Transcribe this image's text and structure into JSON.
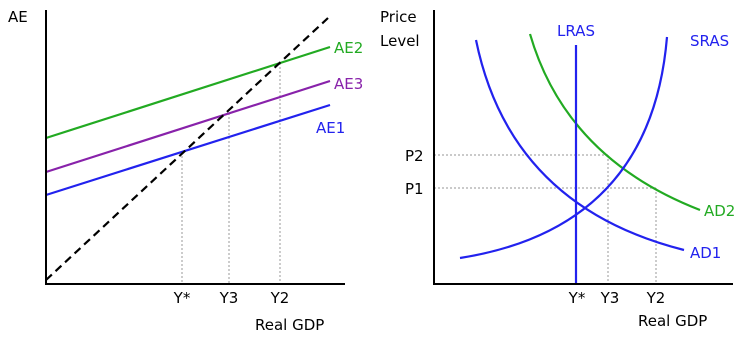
{
  "left_panel": {
    "y_axis_label": "AE",
    "x_axis_label": "Real GDP",
    "lines": {
      "ae1": {
        "label": "AE1",
        "color": "#2222ee"
      },
      "ae2": {
        "label": "AE2",
        "color": "#22aa22"
      },
      "ae3": {
        "label": "AE3",
        "color": "#8822aa"
      },
      "forty_five": {
        "style": "dashed",
        "color": "#000000"
      }
    },
    "x_ticks": [
      "Y*",
      "Y3",
      "Y2"
    ]
  },
  "right_panel": {
    "y_axis_label_line1": "Price",
    "y_axis_label_line2": "Level",
    "x_axis_label": "Real GDP",
    "curves": {
      "lras": {
        "label": "LRAS",
        "color": "#2222ee"
      },
      "sras": {
        "label": "SRAS",
        "color": "#2222ee"
      },
      "ad1": {
        "label": "AD1",
        "color": "#2222ee"
      },
      "ad2": {
        "label": "AD2",
        "color": "#22aa22"
      }
    },
    "y_ticks": [
      "P2",
      "P1"
    ],
    "x_ticks": [
      "Y*",
      "Y3",
      "Y2"
    ]
  }
}
